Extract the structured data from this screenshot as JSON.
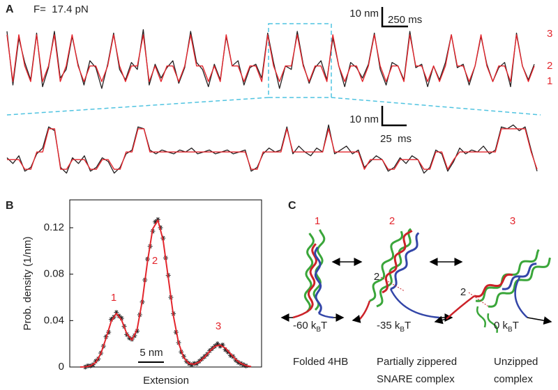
{
  "panel_labels": [
    "A",
    "B",
    "C"
  ],
  "chart_data": [
    {
      "type": "line",
      "annotation": "F=  17.4 pN",
      "scale_labels": [
        "10 nm",
        "250 ms"
      ],
      "state_labels": [
        "3",
        "2",
        "1"
      ],
      "xlim": [
        0,
        5340
      ],
      "ylim": [
        -6,
        31
      ],
      "x": [
        0,
        60,
        120,
        180,
        240,
        300,
        360,
        420,
        480,
        540,
        600,
        660,
        720,
        780,
        840,
        900,
        960,
        1020,
        1080,
        1140,
        1200,
        1260,
        1320,
        1380,
        1440,
        1500,
        1560,
        1620,
        1680,
        1740,
        1800,
        1860,
        1920,
        1980,
        2040,
        2100,
        2160,
        2220,
        2280,
        2340,
        2400,
        2460,
        2520,
        2580,
        2640,
        2700,
        2760,
        2820,
        2880,
        2940,
        3000,
        3060,
        3120,
        3180,
        3240,
        3300,
        3360,
        3420,
        3480,
        3540,
        3600,
        3660,
        3720,
        3780,
        3840,
        3900,
        3960,
        4020,
        4080,
        4140,
        4200,
        4260,
        4320,
        4380,
        4440,
        4500,
        4560,
        4620,
        4680,
        4740,
        4800,
        4860,
        4920,
        4980,
        5040,
        5100,
        5160,
        5220,
        5280,
        5340
      ],
      "series": [
        {
          "color": "#231f20",
          "values": [
            29,
            -2,
            25,
            11,
            1,
            28,
            -3,
            8,
            29,
            2,
            7,
            26,
            10,
            -2,
            12,
            8,
            -4,
            10,
            28,
            7,
            1,
            11,
            7,
            30,
            -2,
            10,
            2,
            8,
            12,
            -1,
            8,
            29,
            11,
            7,
            -3,
            10,
            1,
            26,
            9,
            12,
            -2,
            8,
            10,
            2,
            28,
            11,
            -4,
            9,
            7,
            29,
            10,
            -1,
            8,
            12,
            1,
            25,
            9,
            -3,
            11,
            8,
            2,
            10,
            28,
            7,
            -2,
            11,
            9,
            1,
            29,
            8,
            10,
            -3,
            9,
            1,
            11,
            27,
            8,
            10,
            -2,
            9,
            26,
            10,
            0,
            8,
            11,
            -3,
            28,
            9,
            1,
            10
          ]
        },
        {
          "color": "#e3262d",
          "values": [
            27,
            0,
            27,
            9,
            0,
            27,
            0,
            9,
            27,
            0,
            9,
            27,
            9,
            0,
            9,
            9,
            0,
            9,
            27,
            9,
            0,
            9,
            9,
            27,
            0,
            9,
            0,
            9,
            9,
            0,
            9,
            27,
            9,
            9,
            0,
            9,
            0,
            27,
            9,
            9,
            0,
            9,
            9,
            0,
            27,
            9,
            0,
            9,
            9,
            27,
            9,
            0,
            9,
            9,
            0,
            27,
            9,
            0,
            9,
            9,
            0,
            9,
            27,
            9,
            0,
            9,
            9,
            0,
            27,
            9,
            9,
            0,
            9,
            0,
            9,
            27,
            9,
            9,
            0,
            9,
            27,
            9,
            0,
            9,
            9,
            0,
            27,
            9,
            0,
            9
          ]
        }
      ]
    },
    {
      "type": "line",
      "scale_labels": [
        "10 nm",
        "25  ms"
      ],
      "xlim": [
        0,
        534
      ],
      "ylim": [
        -5.4,
        26.4
      ],
      "x": [
        0,
        6,
        12,
        18,
        24,
        30,
        36,
        42,
        48,
        54,
        60,
        66,
        72,
        78,
        84,
        90,
        96,
        102,
        108,
        114,
        120,
        126,
        132,
        138,
        144,
        150,
        156,
        162,
        168,
        174,
        180,
        186,
        192,
        198,
        204,
        210,
        216,
        222,
        228,
        234,
        240,
        246,
        252,
        258,
        264,
        270,
        276,
        282,
        288,
        294,
        300,
        306,
        312,
        318,
        324,
        330,
        336,
        342,
        348,
        354,
        360,
        366,
        372,
        378,
        384,
        390,
        396,
        402,
        408,
        414,
        420,
        426,
        432,
        438,
        444,
        450,
        456,
        462,
        468,
        474,
        480,
        486,
        492,
        498,
        504,
        510,
        516,
        522,
        528,
        534
      ],
      "series": [
        {
          "color": "#231f20",
          "values": [
            6,
            3,
            7,
            -1,
            1,
            8,
            11,
            22,
            20,
            1,
            -2,
            6,
            3,
            7,
            -1,
            1,
            6,
            4,
            -2,
            1,
            8,
            10,
            22,
            21,
            10,
            8,
            10,
            9,
            8,
            10,
            9,
            11,
            8,
            9,
            10,
            8,
            9,
            10,
            8,
            9,
            10,
            -1,
            1,
            8,
            11,
            9,
            10,
            22,
            8,
            12,
            9,
            7,
            11,
            9,
            23,
            8,
            10,
            12,
            8,
            10,
            1,
            4,
            7,
            5,
            -1,
            1,
            6,
            3,
            7,
            5,
            -2,
            1,
            10,
            8,
            -1,
            4,
            11,
            8,
            10,
            9,
            12,
            8,
            10,
            22,
            21,
            23,
            20,
            22,
            10,
            -1
          ]
        },
        {
          "color": "#e3262d",
          "values": [
            5,
            5,
            5,
            0,
            0,
            9,
            9,
            21,
            21,
            0,
            0,
            5,
            5,
            5,
            0,
            0,
            5,
            5,
            0,
            0,
            9,
            9,
            21,
            21,
            9,
            9,
            9,
            9,
            9,
            9,
            9,
            9,
            9,
            9,
            9,
            9,
            9,
            9,
            9,
            9,
            9,
            0,
            0,
            9,
            9,
            9,
            9,
            21,
            9,
            9,
            9,
            9,
            9,
            9,
            21,
            9,
            9,
            9,
            9,
            9,
            0,
            5,
            5,
            5,
            0,
            0,
            5,
            5,
            5,
            5,
            0,
            0,
            9,
            9,
            0,
            5,
            9,
            9,
            9,
            9,
            9,
            9,
            9,
            21,
            21,
            21,
            21,
            21,
            9,
            0
          ]
        }
      ]
    },
    {
      "type": "line",
      "y_label": "Prob. density (1/nm)",
      "x_label": "Extension",
      "scale_label": "5 nm",
      "annotations": [
        "1",
        "2",
        "3"
      ],
      "xlim": [
        0,
        37
      ],
      "ylim": [
        0,
        0.144
      ],
      "yticks": [
        0,
        0.04,
        0.08,
        0.12
      ],
      "series": [
        {
          "color": "#231f20",
          "marker": "asterisk",
          "x": [
            3,
            3.5,
            4,
            4.5,
            5,
            5.5,
            6,
            6.5,
            7,
            7.5,
            8,
            8.5,
            9,
            9.5,
            10,
            10.5,
            11,
            11.5,
            12,
            12.5,
            13,
            13.5,
            14,
            14.5,
            15,
            15.5,
            16,
            16.5,
            17,
            17.5,
            18,
            18.5,
            19,
            19.5,
            20,
            20.5,
            21,
            21.5,
            22,
            22.5,
            23,
            23.5,
            24,
            24.5,
            25,
            25.5,
            26,
            26.5,
            27,
            27.5,
            28,
            28.5,
            29,
            29.5,
            30,
            30.5,
            31,
            31.5,
            32,
            32.5,
            33,
            33.5,
            34
          ],
          "values": [
            0,
            0.001,
            0.001,
            0.002,
            0.005,
            0.007,
            0.012,
            0.018,
            0.026,
            0.03,
            0.041,
            0.043,
            0.047,
            0.044,
            0.042,
            0.035,
            0.028,
            0.025,
            0.024,
            0.027,
            0.031,
            0.045,
            0.056,
            0.075,
            0.093,
            0.104,
            0.117,
            0.125,
            0.127,
            0.12,
            0.111,
            0.094,
            0.079,
            0.06,
            0.046,
            0.03,
            0.021,
            0.013,
            0.009,
            0.005,
            0.003,
            0.002,
            0.003,
            0.003,
            0.005,
            0.007,
            0.009,
            0.011,
            0.014,
            0.016,
            0.018,
            0.02,
            0.018,
            0.019,
            0.015,
            0.013,
            0.01,
            0.009,
            0.006,
            0.004,
            0.003,
            0.002,
            0.001
          ]
        },
        {
          "color": "#e3262d",
          "marker": "none",
          "x": [
            2,
            3,
            4,
            5,
            6,
            7,
            8,
            9,
            10,
            11,
            12,
            13,
            14,
            15,
            16,
            17,
            18,
            19,
            20,
            21,
            22,
            23,
            24,
            25,
            26,
            27,
            28,
            29,
            30,
            31,
            32,
            33,
            34,
            35
          ],
          "values": [
            0,
            0.0002,
            0.001,
            0.0039,
            0.0115,
            0.0248,
            0.0395,
            0.0462,
            0.0405,
            0.0287,
            0.0233,
            0.0325,
            0.0575,
            0.091,
            0.1189,
            0.1265,
            0.1095,
            0.0771,
            0.0441,
            0.0206,
            0.008,
            0.003,
            0.0024,
            0.0044,
            0.0085,
            0.0136,
            0.0178,
            0.0189,
            0.0164,
            0.0115,
            0.0066,
            0.0031,
            0.0012,
            0.0004
          ]
        }
      ]
    }
  ],
  "diagram": {
    "states": [
      {
        "label": "1",
        "energy": [
          "-60 k",
          "B",
          "T"
        ],
        "name": [
          "Folded 4HB"
        ]
      },
      {
        "label": "2",
        "energy": [
          "-35 k",
          "B",
          "T"
        ],
        "name": [
          "Partially zippered",
          "SNARE complex"
        ]
      },
      {
        "label": "3",
        "energy": [
          "0 k",
          "B",
          "T"
        ],
        "name": [
          "Unzipped",
          "complex"
        ]
      }
    ],
    "site_labels": [
      "2",
      "2"
    ]
  }
}
